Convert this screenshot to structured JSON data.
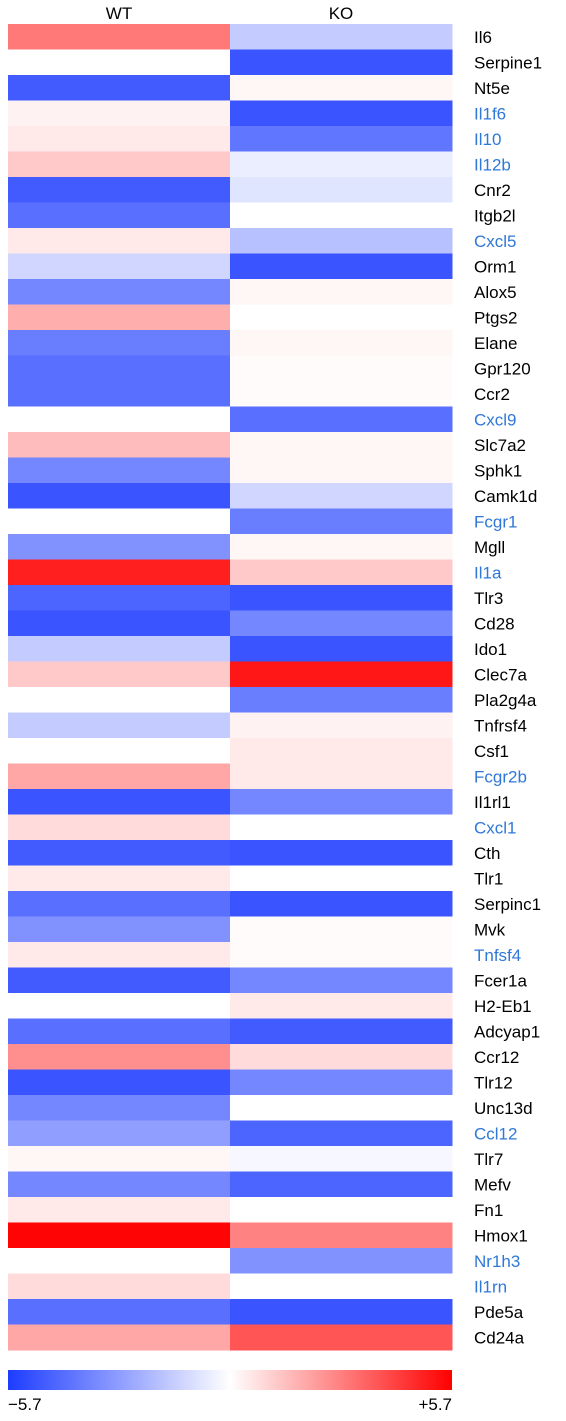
{
  "chart_data": {
    "type": "heatmap",
    "columns": [
      "WT",
      "KO"
    ],
    "rows": [
      "Il6",
      "Serpine1",
      "Nt5e",
      "Il1f6",
      "Il10",
      "Il12b",
      "Cnr2",
      "Itgb2l",
      "Cxcl5",
      "Orm1",
      "Alox5",
      "Ptgs2",
      "Elane",
      "Gpr120",
      "Ccr2",
      "Cxcl9",
      "Slc7a2",
      "Sphk1",
      "Camk1d",
      "Fcgr1",
      "Mgll",
      "Il1a",
      "Tlr3",
      "Cd28",
      "Ido1",
      "Clec7a",
      "Pla2g4a",
      "Tnfrsf4",
      "Csf1",
      "Fcgr2b",
      "Il1rl1",
      "Cxcl1",
      "Cth",
      "Tlr1",
      "Serpinc1",
      "Mvk",
      "Tnfsf4",
      "Fcer1a",
      "H2-Eb1",
      "Adcyap1",
      "Ccr12",
      "Tlr12",
      "Unc13d",
      "Ccl12",
      "Tlr7",
      "Mefv",
      "Fn1",
      "Hmox1",
      "Nr1h3",
      "Il1rn",
      "Pde5a",
      "Cd24a"
    ],
    "highlighted_rows": [
      "Il1f6",
      "Il10",
      "Il12b",
      "Cxcl5",
      "Cxcl9",
      "Fcgr1",
      "Il1a",
      "Fcgr2b",
      "Cxcl1",
      "Tnfsf4",
      "Ccl12",
      "Nr1h3",
      "Il1rn"
    ],
    "values": [
      [
        3.0,
        -1.5
      ],
      [
        0.0,
        -5.0
      ],
      [
        -4.8,
        0.2
      ],
      [
        0.3,
        -5.0
      ],
      [
        0.5,
        -4.0
      ],
      [
        1.2,
        -0.5
      ],
      [
        -4.8,
        -0.8
      ],
      [
        -4.2,
        0.0
      ],
      [
        0.5,
        -1.8
      ],
      [
        -1.2,
        -5.0
      ],
      [
        -3.5,
        0.2
      ],
      [
        1.8,
        0.0
      ],
      [
        -3.8,
        0.2
      ],
      [
        -4.2,
        0.1
      ],
      [
        -4.2,
        0.1
      ],
      [
        0.0,
        -4.2
      ],
      [
        1.5,
        0.2
      ],
      [
        -3.5,
        0.2
      ],
      [
        -5.0,
        -1.2
      ],
      [
        0.0,
        -3.8
      ],
      [
        -3.2,
        0.2
      ],
      [
        5.0,
        1.2
      ],
      [
        -4.5,
        -5.0
      ],
      [
        -5.0,
        -3.5
      ],
      [
        -1.5,
        -5.0
      ],
      [
        1.2,
        5.2
      ],
      [
        0.0,
        -3.8
      ],
      [
        -1.5,
        0.3
      ],
      [
        0.0,
        0.5
      ],
      [
        2.0,
        0.5
      ],
      [
        -5.0,
        -3.5
      ],
      [
        0.8,
        0.0
      ],
      [
        -4.8,
        -5.0
      ],
      [
        0.5,
        0.0
      ],
      [
        -4.2,
        -5.0
      ],
      [
        -3.2,
        0.1
      ],
      [
        0.5,
        0.1
      ],
      [
        -4.8,
        -3.5
      ],
      [
        0.0,
        0.5
      ],
      [
        -4.2,
        -4.8
      ],
      [
        2.5,
        0.8
      ],
      [
        -5.0,
        -3.5
      ],
      [
        -3.5,
        0.0
      ],
      [
        -2.8,
        -4.5
      ],
      [
        0.2,
        -0.2
      ],
      [
        -3.5,
        -4.5
      ],
      [
        0.5,
        0.0
      ],
      [
        5.6,
        2.8
      ],
      [
        0.0,
        -3.2
      ],
      [
        0.8,
        0.0
      ],
      [
        -4.2,
        -5.0
      ],
      [
        2.0,
        3.8
      ]
    ],
    "colorscale": {
      "min": -5.7,
      "max": 5.7,
      "low_color": "#1e3cff",
      "mid_color": "#ffffff",
      "high_color": "#ff0000"
    },
    "label_colors": {
      "normal": "#000000",
      "highlight": "#2f78d8"
    },
    "colorbar_labels": {
      "min": "−5.7",
      "max": "+5.7"
    }
  }
}
